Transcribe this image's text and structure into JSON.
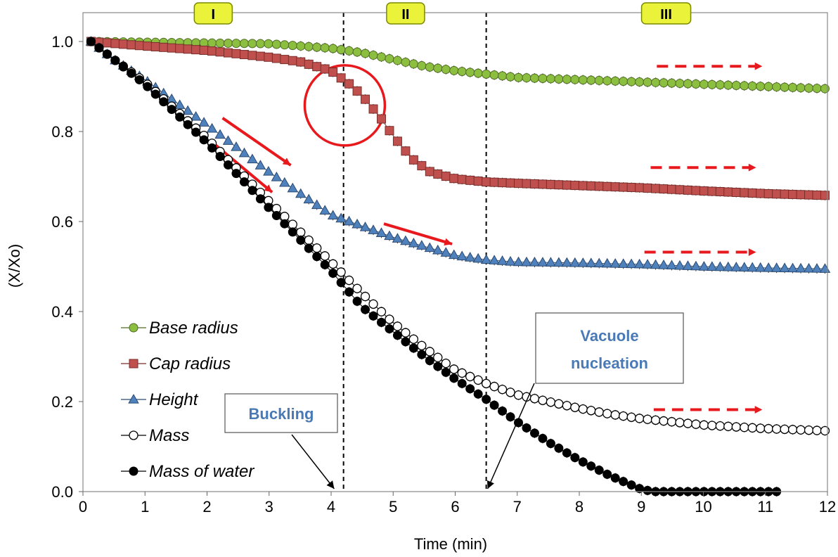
{
  "chart_data": {
    "type": "scatter",
    "xlabel": "Time  (min)",
    "ylabel": "(X/Xo)",
    "xlim": [
      0,
      12
    ],
    "ylim": [
      0,
      1.05
    ],
    "x_ticks": [
      "0",
      "1",
      "2",
      "3",
      "4",
      "5",
      "6",
      "7",
      "8",
      "9",
      "10",
      "11",
      "12"
    ],
    "y_ticks": [
      "0.0",
      "0.2",
      "0.4",
      "0.6",
      "0.8",
      "1.0"
    ],
    "grid": false,
    "legend_position": "bottom-left",
    "phases": [
      {
        "label": "I",
        "x": 2.1
      },
      {
        "label": "II",
        "x": 5.2
      },
      {
        "label": "III",
        "x": 9.4
      }
    ],
    "boundaries": [
      4.2,
      6.5
    ],
    "annotations": [
      {
        "text": "Buckling",
        "arrow_to": [
          4.05,
          0.0
        ]
      },
      {
        "text": "Vacuole nucleation",
        "lines": [
          "Vacuole",
          "nucleation"
        ],
        "arrow_to": [
          6.5,
          0.0
        ]
      }
    ],
    "series": [
      {
        "name": "Base radius",
        "marker": "circle",
        "color": "#8cbf40",
        "stroke": "#4f6b25",
        "points": [
          [
            0.13,
            1.0
          ],
          [
            3.0,
            0.995
          ],
          [
            4.0,
            0.985
          ],
          [
            4.5,
            0.975
          ],
          [
            5.0,
            0.96
          ],
          [
            5.5,
            0.945
          ],
          [
            6.0,
            0.935
          ],
          [
            7.0,
            0.92
          ],
          [
            8.0,
            0.915
          ],
          [
            9.0,
            0.91
          ],
          [
            10.0,
            0.905
          ],
          [
            11.0,
            0.9
          ],
          [
            12.0,
            0.895
          ]
        ]
      },
      {
        "name": "Cap radius",
        "marker": "square",
        "color": "#c0504d",
        "stroke": "#7a2e2b",
        "points": [
          [
            0.13,
            1.0
          ],
          [
            1.0,
            0.99
          ],
          [
            2.0,
            0.98
          ],
          [
            3.0,
            0.965
          ],
          [
            3.5,
            0.955
          ],
          [
            4.0,
            0.935
          ],
          [
            4.3,
            0.905
          ],
          [
            4.5,
            0.88
          ],
          [
            4.8,
            0.83
          ],
          [
            5.0,
            0.79
          ],
          [
            5.3,
            0.74
          ],
          [
            5.6,
            0.71
          ],
          [
            6.0,
            0.695
          ],
          [
            6.5,
            0.688
          ],
          [
            7.0,
            0.685
          ],
          [
            8.0,
            0.68
          ],
          [
            9.0,
            0.675
          ],
          [
            10.0,
            0.668
          ],
          [
            11.0,
            0.662
          ],
          [
            12.0,
            0.658
          ]
        ]
      },
      {
        "name": "Height",
        "marker": "triangle",
        "color": "#4f81bd",
        "stroke": "#2b4a70",
        "points": [
          [
            0.13,
            1.0
          ],
          [
            0.5,
            0.96
          ],
          [
            1.0,
            0.915
          ],
          [
            2.0,
            0.815
          ],
          [
            3.0,
            0.71
          ],
          [
            4.0,
            0.615
          ],
          [
            4.5,
            0.59
          ],
          [
            5.0,
            0.565
          ],
          [
            5.5,
            0.545
          ],
          [
            6.0,
            0.525
          ],
          [
            6.5,
            0.515
          ],
          [
            7.0,
            0.51
          ],
          [
            8.0,
            0.508
          ],
          [
            9.0,
            0.505
          ],
          [
            10.0,
            0.5
          ],
          [
            11.0,
            0.497
          ],
          [
            12.0,
            0.495
          ]
        ]
      },
      {
        "name": "Mass",
        "marker": "open-circle",
        "color": "#ffffff",
        "stroke": "#000000",
        "points": [
          [
            0.13,
            1.0
          ],
          [
            0.5,
            0.96
          ],
          [
            1.0,
            0.91
          ],
          [
            2.0,
            0.785
          ],
          [
            3.0,
            0.645
          ],
          [
            4.0,
            0.51
          ],
          [
            4.5,
            0.44
          ],
          [
            5.0,
            0.375
          ],
          [
            5.5,
            0.32
          ],
          [
            6.0,
            0.27
          ],
          [
            6.5,
            0.24
          ],
          [
            7.0,
            0.215
          ],
          [
            7.5,
            0.2
          ],
          [
            8.0,
            0.185
          ],
          [
            8.5,
            0.172
          ],
          [
            9.0,
            0.162
          ],
          [
            10.0,
            0.148
          ],
          [
            11.0,
            0.14
          ],
          [
            12.0,
            0.135
          ]
        ]
      },
      {
        "name": "Mass of water",
        "marker": "filled-circle",
        "color": "#000000",
        "stroke": "#000000",
        "points": [
          [
            0.13,
            1.0
          ],
          [
            0.5,
            0.96
          ],
          [
            1.0,
            0.905
          ],
          [
            2.0,
            0.775
          ],
          [
            3.0,
            0.63
          ],
          [
            4.0,
            0.49
          ],
          [
            4.5,
            0.41
          ],
          [
            5.0,
            0.355
          ],
          [
            5.5,
            0.3
          ],
          [
            6.0,
            0.25
          ],
          [
            6.5,
            0.205
          ],
          [
            7.0,
            0.155
          ],
          [
            7.5,
            0.11
          ],
          [
            8.0,
            0.07
          ],
          [
            8.5,
            0.035
          ],
          [
            9.0,
            0.005
          ],
          [
            9.2,
            0.0
          ],
          [
            11.2,
            0.0
          ]
        ]
      }
    ]
  }
}
